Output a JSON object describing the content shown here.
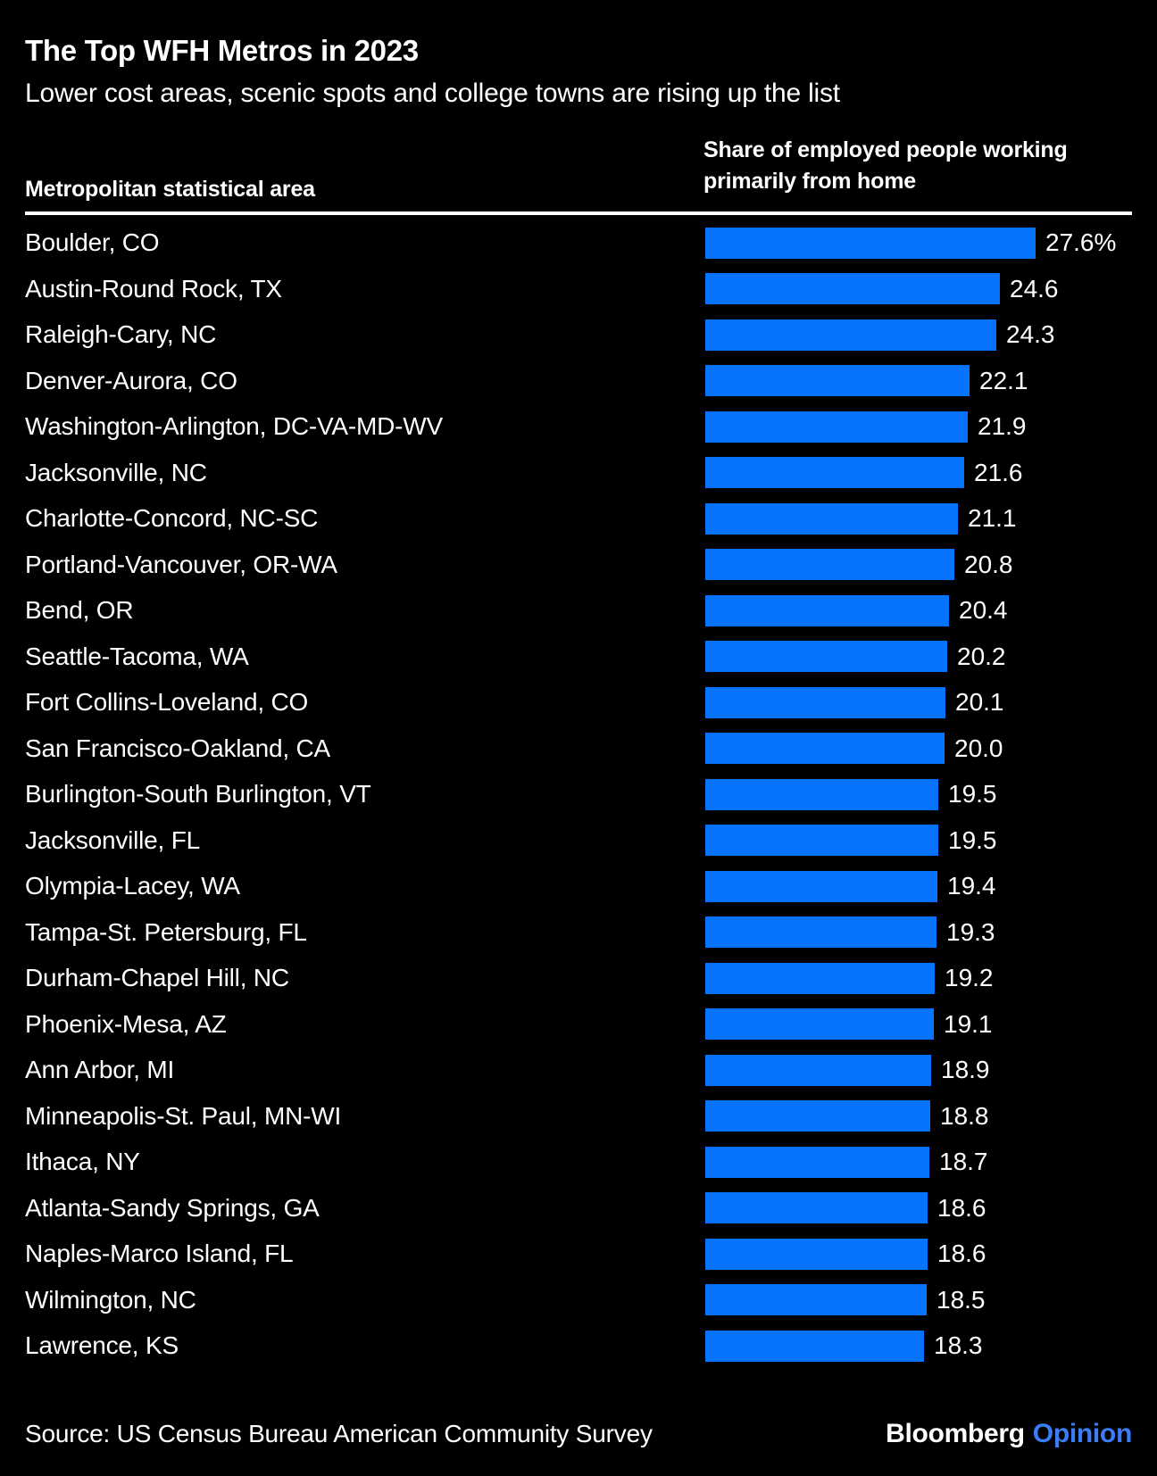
{
  "meta": {
    "background_color": "#000000",
    "text_color": "#ffffff",
    "bar_color": "#0673fc",
    "brand_accent_color": "#3b7cf7"
  },
  "header": {
    "title": "The Top WFH Metros in 2023",
    "subtitle": "Lower cost areas, scenic spots and college towns are rising up the list",
    "left_column_header": "Metropolitan statistical area",
    "right_column_header_line1": "Share of employed people working",
    "right_column_header_line2": "primarily from home"
  },
  "chart_data": {
    "type": "bar",
    "orientation": "horizontal",
    "title": "The Top WFH Metros in 2023",
    "subtitle": "Lower cost areas, scenic spots and college towns are rising up the list",
    "category_axis_label": "Metropolitan statistical area",
    "value_axis_label": "Share of employed people working primarily from home",
    "xlim": [
      0,
      27.6
    ],
    "grid": false,
    "legend": false,
    "unit": "%",
    "categories": [
      "Boulder, CO",
      "Austin-Round Rock, TX",
      "Raleigh-Cary, NC",
      "Denver-Aurora, CO",
      "Washington-Arlington, DC-VA-MD-WV",
      "Jacksonville, NC",
      "Charlotte-Concord, NC-SC",
      "Portland-Vancouver, OR-WA",
      "Bend, OR",
      "Seattle-Tacoma, WA",
      "Fort Collins-Loveland, CO",
      "San Francisco-Oakland, CA",
      "Burlington-South Burlington, VT",
      "Jacksonville, FL",
      "Olympia-Lacey, WA",
      "Tampa-St. Petersburg, FL",
      "Durham-Chapel Hill, NC",
      "Phoenix-Mesa, AZ",
      "Ann Arbor, MI",
      "Minneapolis-St. Paul, MN-WI",
      "Ithaca, NY",
      "Atlanta-Sandy Springs, GA",
      "Naples-Marco Island, FL",
      "Wilmington, NC",
      "Lawrence, KS"
    ],
    "values": [
      27.6,
      24.6,
      24.3,
      22.1,
      21.9,
      21.6,
      21.1,
      20.8,
      20.4,
      20.2,
      20.1,
      20.0,
      19.5,
      19.5,
      19.4,
      19.3,
      19.2,
      19.1,
      18.9,
      18.8,
      18.7,
      18.6,
      18.6,
      18.5,
      18.3
    ],
    "value_labels": [
      "27.6%",
      "24.6",
      "24.3",
      "22.1",
      "21.9",
      "21.6",
      "21.1",
      "20.8",
      "20.4",
      "20.2",
      "20.1",
      "20.0",
      "19.5",
      "19.5",
      "19.4",
      "19.3",
      "19.2",
      "19.1",
      "18.9",
      "18.8",
      "18.7",
      "18.6",
      "18.6",
      "18.5",
      "18.3"
    ]
  },
  "footer": {
    "source": "Source: US Census Bureau American Community Survey",
    "brand": "Bloomberg",
    "brand_suffix": "Opinion"
  }
}
